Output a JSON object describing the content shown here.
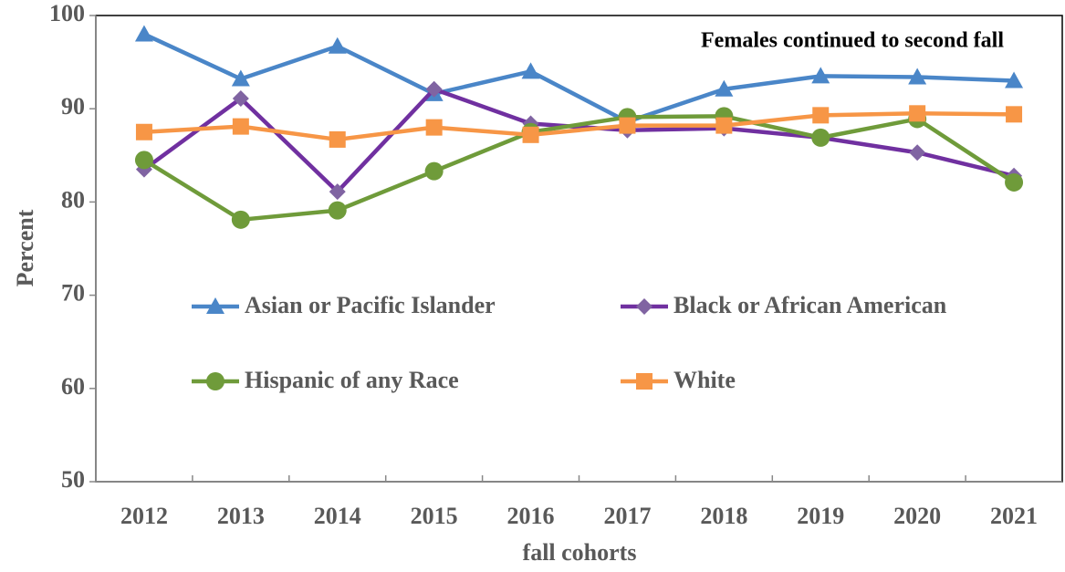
{
  "chart_data": {
    "type": "line",
    "title": "Females continued to second fall",
    "x_label": "fall cohorts",
    "y_label": "Percent",
    "categories": [
      "2012",
      "2013",
      "2014",
      "2015",
      "2016",
      "2017",
      "2018",
      "2019",
      "2020",
      "2021"
    ],
    "series": [
      {
        "name": "Asian or Pacific Islander",
        "color": "#4a86c8",
        "marker": "triangle",
        "values": [
          98.0,
          93.2,
          96.7,
          91.6,
          94.0,
          88.6,
          92.1,
          93.5,
          93.4,
          93.0
        ]
      },
      {
        "name": "Black or African American",
        "color": "#7030a0",
        "marker": "diamond",
        "values": [
          83.5,
          91.1,
          81.1,
          92.1,
          88.4,
          87.7,
          87.9,
          86.9,
          85.3,
          82.8
        ]
      },
      {
        "name": "Hispanic of any Race",
        "color": "#6f9b3a",
        "marker": "circle",
        "values": [
          84.5,
          78.1,
          79.1,
          83.3,
          87.5,
          89.1,
          89.2,
          86.9,
          88.9,
          82.1
        ]
      },
      {
        "name": "White",
        "color": "#f79646",
        "marker": "square",
        "values": [
          87.5,
          88.1,
          86.7,
          88.0,
          87.2,
          88.2,
          88.2,
          89.3,
          89.5,
          89.4
        ]
      }
    ],
    "ylim": [
      50,
      100
    ],
    "yticks": [
      50,
      60,
      70,
      80,
      90,
      100
    ],
    "grid": false,
    "legend": "center"
  }
}
